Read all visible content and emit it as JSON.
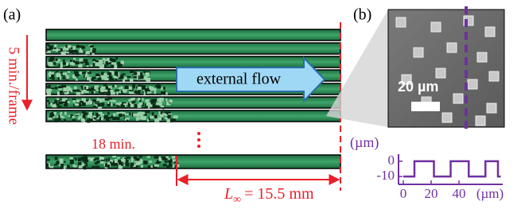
{
  "panel_a": {
    "label": "(a)",
    "frame_rate": "5 min./frame",
    "flow": "external flow",
    "time": "18 min.",
    "length": {
      "symbol": "L",
      "subscript": "∞",
      "text": "= 15.5 mm"
    }
  },
  "panel_b": {
    "label": "(b)",
    "scale_bar": "20 µm",
    "unit_label": "(µm)"
  },
  "profile": {
    "type": "line",
    "color": "#7030a0",
    "x_unit": "(µm)",
    "x": [
      0,
      8,
      8,
      22,
      22,
      34,
      34,
      47,
      47,
      59,
      59,
      68,
      68,
      70
    ],
    "values": [
      -10,
      -10,
      0,
      0,
      -10,
      -10,
      0,
      0,
      -10,
      -10,
      0,
      0,
      -10,
      -10
    ],
    "xlim": [
      0,
      70
    ],
    "ylim": [
      -12,
      2
    ],
    "xticks": [
      0,
      20,
      40
    ],
    "yticks": [
      0,
      -10
    ]
  }
}
